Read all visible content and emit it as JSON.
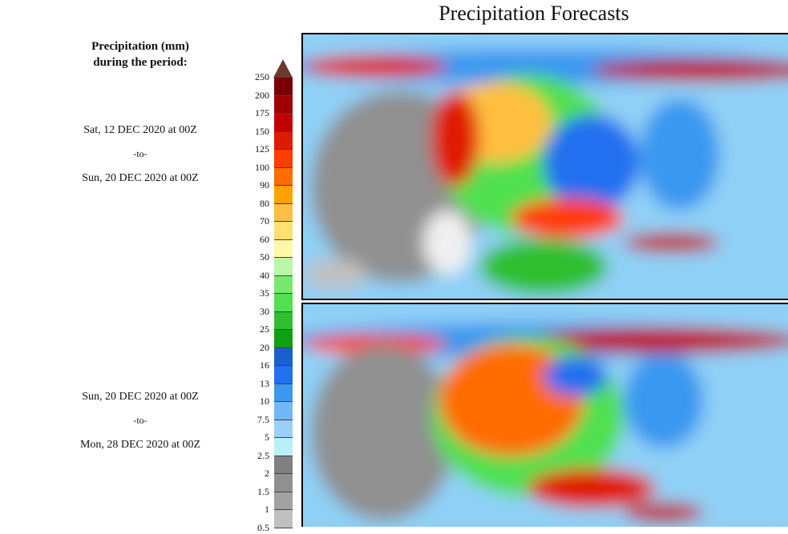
{
  "title": "Precipitation Forecasts",
  "legend": {
    "title_line1": "Precipitation (mm)",
    "title_line2": "during the period:",
    "labels": [
      "250",
      "200",
      "175",
      "150",
      "125",
      "100",
      "90",
      "80",
      "70",
      "60",
      "50",
      "40",
      "35",
      "30",
      "25",
      "20",
      "16",
      "13",
      "10",
      "7.5",
      "5",
      "2.5",
      "2",
      "1.5",
      "1",
      "0.5"
    ],
    "colors": [
      "#7a0000",
      "#a00000",
      "#c20000",
      "#e01a00",
      "#ff3c00",
      "#ff6c00",
      "#ffa200",
      "#ffbf40",
      "#ffe070",
      "#fff7a8",
      "#b8f8a8",
      "#78e870",
      "#50e050",
      "#2fbf2f",
      "#109f10",
      "#1860d0",
      "#2070f0",
      "#3a98f0",
      "#72b8f8",
      "#98d0f8",
      "#b8f0f8",
      "#808080",
      "#909090",
      "#a2a2a2",
      "#c0c0c0"
    ],
    "overflow_color": "#6b3a2e"
  },
  "periods": [
    {
      "start": "Sat, 12 DEC 2020 at 00Z",
      "sep": "-to-",
      "end": "Sun, 20 DEC 2020 at 00Z"
    },
    {
      "start": "Sun, 20 DEC 2020 at 00Z",
      "sep": "-to-",
      "end": "Mon, 28 DEC 2020 at 00Z"
    }
  ]
}
